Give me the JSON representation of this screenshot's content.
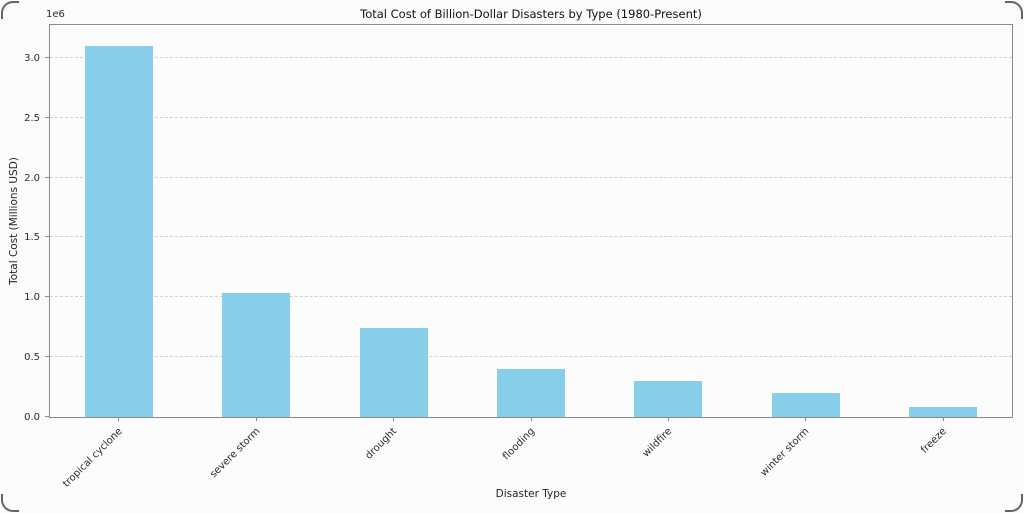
{
  "page": {
    "background": "#fcfcfc"
  },
  "chart_data": {
    "type": "bar",
    "title": "Total Cost of Billion-Dollar Disasters by Type (1980-Present)",
    "xlabel": "Disaster Type",
    "ylabel": "Total Cost (Millions USD)",
    "offset_label": "1e6",
    "categories": [
      "tropical cyclone",
      "severe storm",
      "drought",
      "flooding",
      "wildfire",
      "winter storm",
      "freeze"
    ],
    "values": [
      3100000,
      1035000,
      740000,
      398000,
      298000,
      201000,
      80000
    ],
    "ylim": [
      0,
      3274000
    ],
    "yticks": [
      0,
      500000,
      1000000,
      1500000,
      2000000,
      2500000,
      3000000
    ],
    "ytick_labels": [
      "0.0",
      "0.5",
      "1.0",
      "1.5",
      "2.0",
      "2.5",
      "3.0"
    ],
    "grid": "horizontal-dashed",
    "legend": null,
    "bar_color": "#87ceeb",
    "spine_color": "#8a8a8a",
    "grid_color": "#d2d2d2"
  }
}
